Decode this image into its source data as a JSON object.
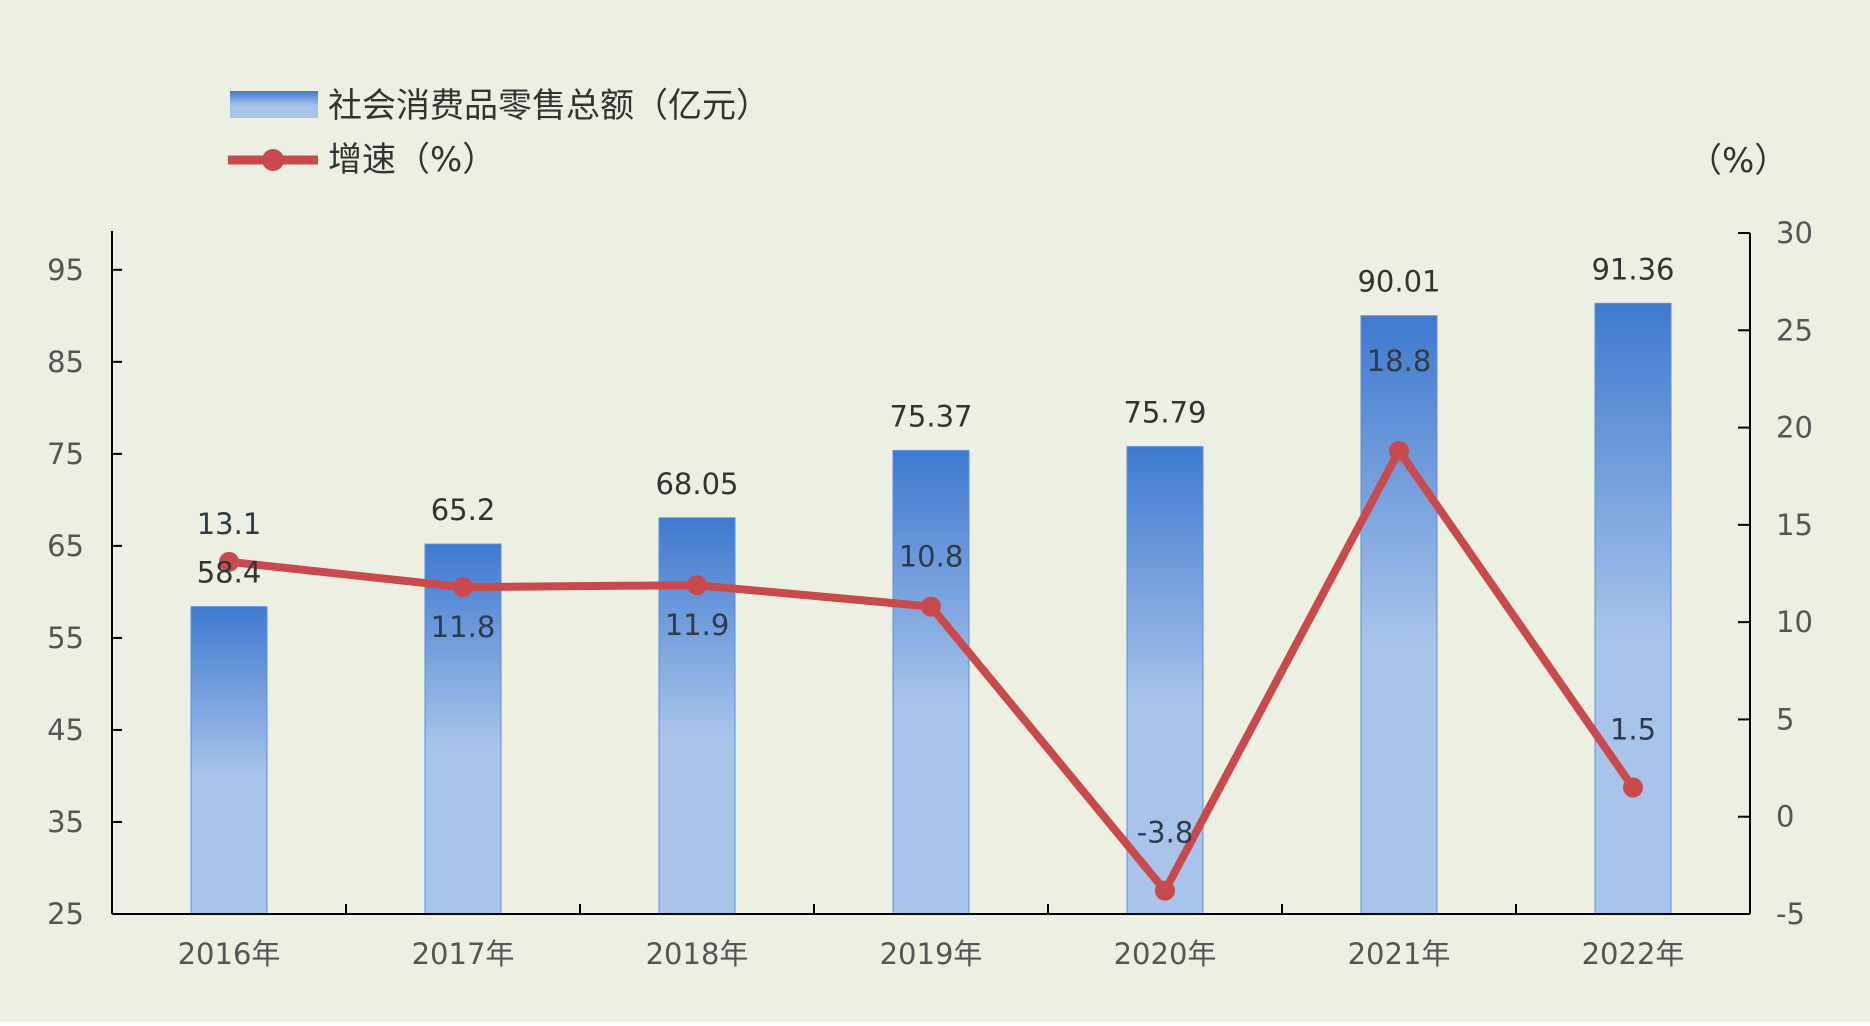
{
  "chart_data": {
    "type": "bar",
    "categories": [
      "2016年",
      "2017年",
      "2018年",
      "2019年",
      "2020年",
      "2021年",
      "2022年"
    ],
    "series": [
      {
        "name": "社会消费品零售总额（亿元）",
        "type": "bar",
        "axis": "left",
        "values": [
          58.4,
          65.2,
          68.05,
          75.37,
          75.79,
          90.01,
          91.36
        ],
        "value_labels": [
          "58.4",
          "65.2",
          "68.05",
          "75.37",
          "75.79",
          "90.01",
          "91.36"
        ]
      },
      {
        "name": "增速（%）",
        "type": "line",
        "axis": "right",
        "values": [
          13.1,
          11.8,
          11.9,
          10.8,
          -3.8,
          18.8,
          1.5
        ],
        "value_labels": [
          "13.1",
          "11.8",
          "11.9",
          "10.8",
          "-3.8",
          "18.8",
          "1.5"
        ]
      }
    ],
    "left_axis": {
      "ylim": [
        25,
        99
      ],
      "ticks": [
        25,
        35,
        45,
        55,
        65,
        75,
        85,
        95
      ]
    },
    "right_axis": {
      "unit_label": "（%）",
      "ylim": [
        -5,
        30
      ],
      "ticks": [
        -5,
        0,
        5,
        10,
        15,
        20,
        25,
        30
      ]
    },
    "legend_position": "top-left",
    "grid": false,
    "colors": {
      "background": "#eeefe3",
      "bar_top": "#3f79cf",
      "bar_bottom": "#a8c4ea",
      "bar_edge": "#5b8fd9",
      "line": "#c94a4c",
      "axis": "#000000"
    }
  }
}
